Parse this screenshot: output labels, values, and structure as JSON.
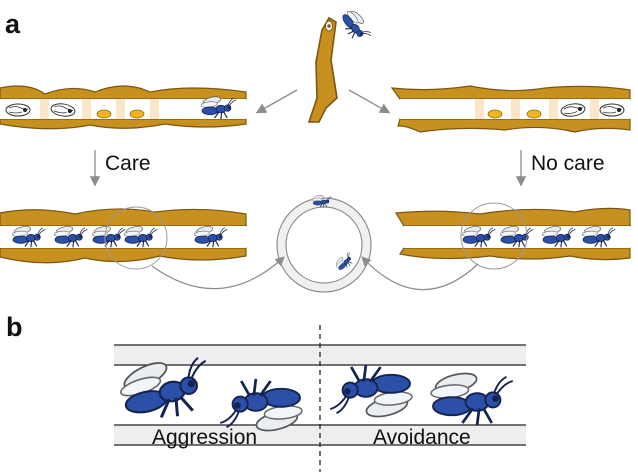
{
  "panels": {
    "a": "a",
    "b": "b"
  },
  "labels": {
    "care": "Care",
    "no_care": "No care",
    "aggression": "Aggression",
    "avoidance": "Avoidance"
  },
  "colors": {
    "stem": "#c8911f",
    "stem_dark": "#7a5610",
    "wasp_body": "#2c4fa8",
    "wasp_dark": "#14234f",
    "cocoon": "#fbe6c9",
    "larva": "#f5b41e",
    "arrow": "#888888",
    "tube_band": "#eeeeee"
  }
}
